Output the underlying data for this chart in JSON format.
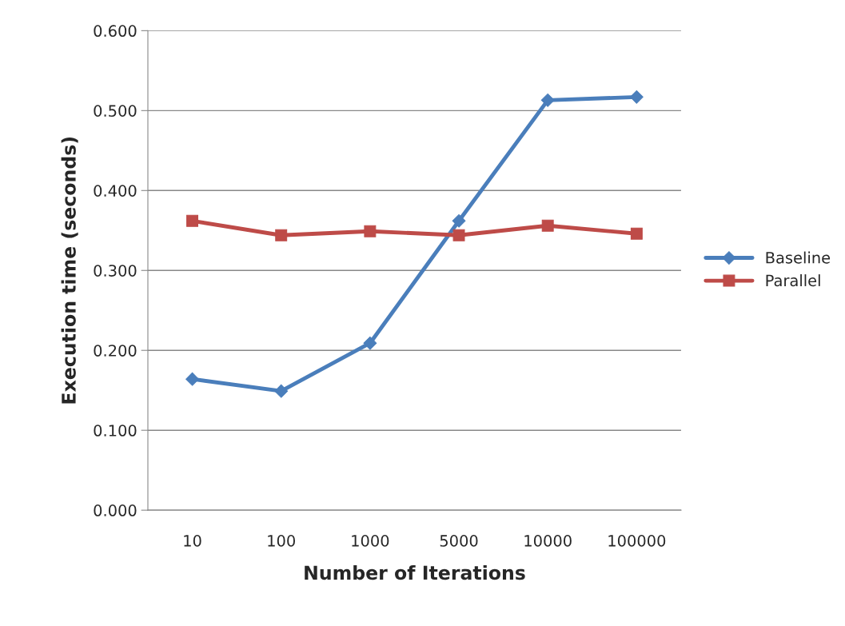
{
  "chart_data": {
    "type": "line",
    "xlabel": "Number of Iterations",
    "ylabel": "Execution time (seconds)",
    "categories": [
      "10",
      "100",
      "1000",
      "5000",
      "10000",
      "100000"
    ],
    "series": [
      {
        "name": "Baseline",
        "color": "#4a7ebb",
        "marker": "diamond",
        "values": [
          0.164,
          0.149,
          0.209,
          0.362,
          0.513,
          0.517
        ]
      },
      {
        "name": "Parallel",
        "color": "#be4b48",
        "marker": "square",
        "values": [
          0.362,
          0.344,
          0.349,
          0.344,
          0.356,
          0.346
        ]
      }
    ],
    "ylim": [
      0,
      0.6
    ],
    "yticks": [
      {
        "value": 0,
        "label": "0.000"
      },
      {
        "value": 0.1,
        "label": "0.100"
      },
      {
        "value": 0.2,
        "label": "0.200"
      },
      {
        "value": 0.3,
        "label": "0.300"
      },
      {
        "value": 0.4,
        "label": "0.400"
      },
      {
        "value": 0.5,
        "label": "0.500"
      },
      {
        "value": 0.6,
        "label": "0.600"
      }
    ],
    "grid": "y",
    "legend": "right"
  }
}
